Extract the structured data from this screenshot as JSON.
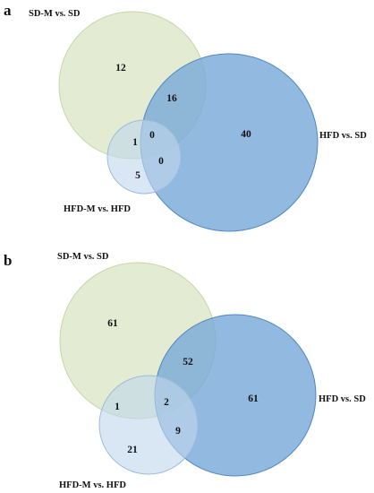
{
  "panels": [
    {
      "letter": "a",
      "labels": {
        "sd_m": "SD-M vs. SD",
        "hfd": "HFD vs. SD",
        "hfd_m": "HFD-M vs. HFD"
      },
      "counts": {
        "sd_m_only": "12",
        "sd_m_hfd": "16",
        "hfd_only": "40",
        "sd_m_hfd_m": "1",
        "all_three": "0",
        "hfd_hfd_m": "0",
        "hfd_m_only": "5"
      }
    },
    {
      "letter": "b",
      "labels": {
        "sd_m": "SD-M vs. SD",
        "hfd": "HFD vs. SD",
        "hfd_m": "HFD-M vs. HFD"
      },
      "counts": {
        "sd_m_only": "61",
        "sd_m_hfd": "52",
        "hfd_only": "61",
        "sd_m_hfd_m": "1",
        "all_three": "2",
        "hfd_hfd_m": "9",
        "hfd_m_only": "21"
      }
    }
  ],
  "colors": {
    "sd_m_fill": "#dde8c8",
    "sd_m_stroke": "#c5d8a8",
    "hfd_fill": "#7aaad8",
    "hfd_stroke": "#4f88c0",
    "hfd_m_fill": "#c2d6ec",
    "hfd_m_stroke": "#9dbcdc"
  }
}
